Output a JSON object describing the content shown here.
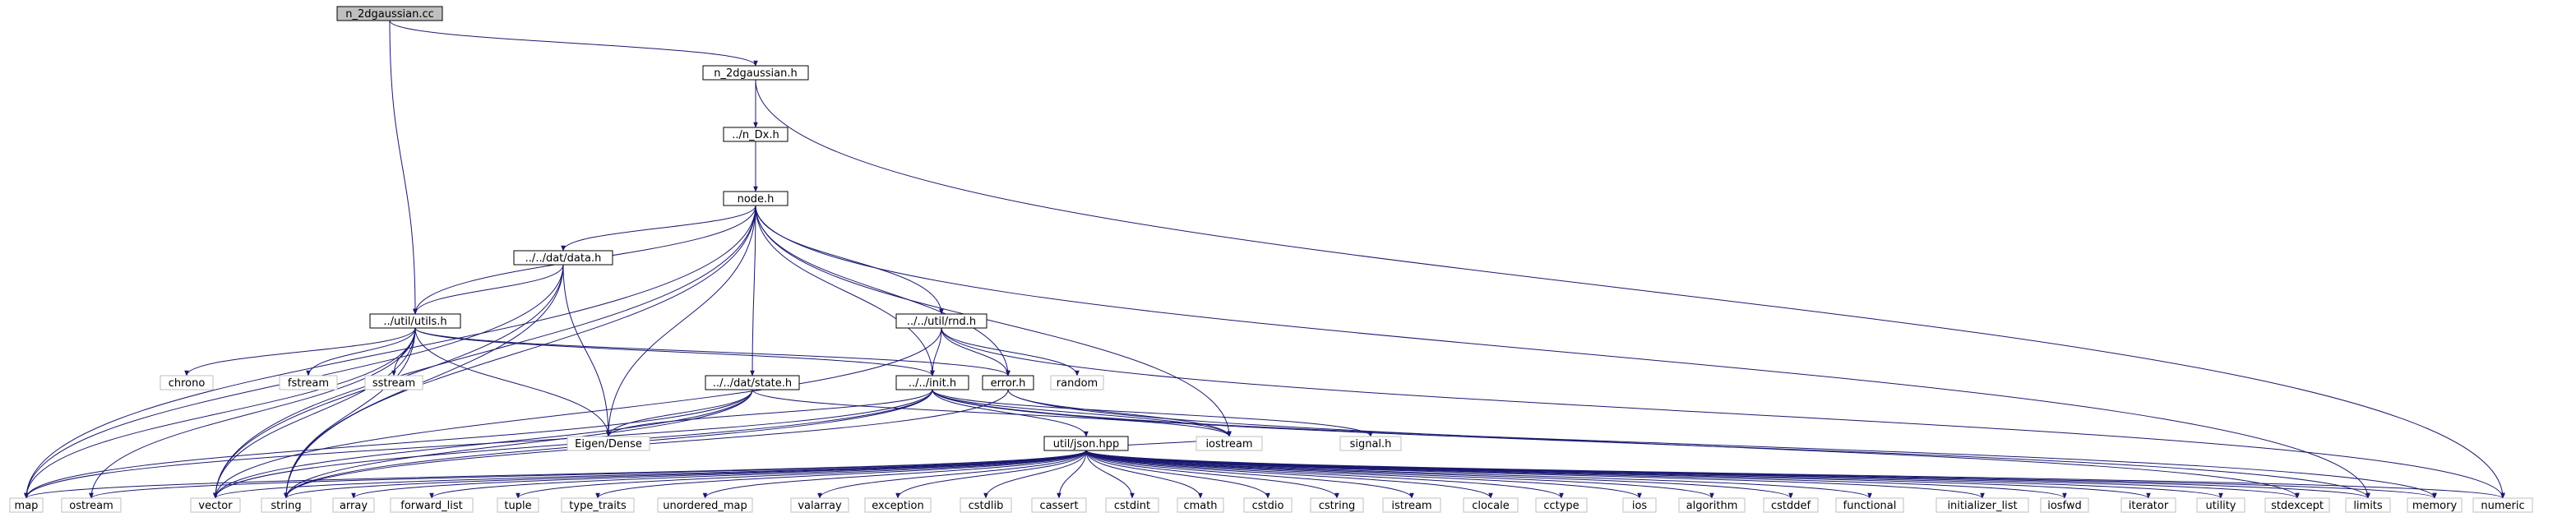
{
  "title": "n_2dgaussian.cc",
  "colors": {
    "edge": "#191970",
    "main_fill": "#bfbfbf",
    "node_fill": "#ffffff",
    "system_border": "#bfbfbf"
  },
  "nodes": [
    {
      "id": "cc",
      "label": "n_2dgaussian.cc",
      "kind": "main"
    },
    {
      "id": "h",
      "label": "n_2dgaussian.h",
      "kind": "file"
    },
    {
      "id": "ndx",
      "label": "../n_Dx.h",
      "kind": "file"
    },
    {
      "id": "node",
      "label": "node.h",
      "kind": "file"
    },
    {
      "id": "data",
      "label": "../../dat/data.h",
      "kind": "file"
    },
    {
      "id": "utils",
      "label": "../util/utils.h",
      "kind": "file"
    },
    {
      "id": "rnd",
      "label": "../../util/rnd.h",
      "kind": "file"
    },
    {
      "id": "state",
      "label": "../../dat/state.h",
      "kind": "file"
    },
    {
      "id": "init",
      "label": "../../init.h",
      "kind": "file"
    },
    {
      "id": "error",
      "label": "error.h",
      "kind": "file"
    },
    {
      "id": "json",
      "label": "util/json.hpp",
      "kind": "file"
    },
    {
      "id": "chrono",
      "label": "chrono",
      "kind": "sys"
    },
    {
      "id": "fstream",
      "label": "fstream",
      "kind": "sys"
    },
    {
      "id": "sstream",
      "label": "sstream",
      "kind": "sys"
    },
    {
      "id": "random",
      "label": "random",
      "kind": "sys"
    },
    {
      "id": "eigen",
      "label": "Eigen/Dense",
      "kind": "sys"
    },
    {
      "id": "iostream",
      "label": "iostream",
      "kind": "sys"
    },
    {
      "id": "signal",
      "label": "signal.h",
      "kind": "sys"
    },
    {
      "id": "map",
      "label": "map",
      "kind": "sys"
    },
    {
      "id": "ostream",
      "label": "ostream",
      "kind": "sys"
    },
    {
      "id": "vector",
      "label": "vector",
      "kind": "sys"
    },
    {
      "id": "string",
      "label": "string",
      "kind": "sys"
    },
    {
      "id": "array",
      "label": "array",
      "kind": "sys"
    },
    {
      "id": "forward_list",
      "label": "forward_list",
      "kind": "sys"
    },
    {
      "id": "tuple",
      "label": "tuple",
      "kind": "sys"
    },
    {
      "id": "type_traits",
      "label": "type_traits",
      "kind": "sys"
    },
    {
      "id": "unordered_map",
      "label": "unordered_map",
      "kind": "sys"
    },
    {
      "id": "valarray",
      "label": "valarray",
      "kind": "sys"
    },
    {
      "id": "exception",
      "label": "exception",
      "kind": "sys"
    },
    {
      "id": "cstdlib",
      "label": "cstdlib",
      "kind": "sys"
    },
    {
      "id": "cassert",
      "label": "cassert",
      "kind": "sys"
    },
    {
      "id": "cstdint",
      "label": "cstdint",
      "kind": "sys"
    },
    {
      "id": "cmath",
      "label": "cmath",
      "kind": "sys"
    },
    {
      "id": "cstdio",
      "label": "cstdio",
      "kind": "sys"
    },
    {
      "id": "cstring",
      "label": "cstring",
      "kind": "sys"
    },
    {
      "id": "istream",
      "label": "istream",
      "kind": "sys"
    },
    {
      "id": "clocale",
      "label": "clocale",
      "kind": "sys"
    },
    {
      "id": "cctype",
      "label": "cctype",
      "kind": "sys"
    },
    {
      "id": "ios",
      "label": "ios",
      "kind": "sys"
    },
    {
      "id": "algorithm",
      "label": "algorithm",
      "kind": "sys"
    },
    {
      "id": "cstddef",
      "label": "cstddef",
      "kind": "sys"
    },
    {
      "id": "functional",
      "label": "functional",
      "kind": "sys"
    },
    {
      "id": "initializer_list",
      "label": "initializer_list",
      "kind": "sys"
    },
    {
      "id": "iosfwd",
      "label": "iosfwd",
      "kind": "sys"
    },
    {
      "id": "iterator",
      "label": "iterator",
      "kind": "sys"
    },
    {
      "id": "utility",
      "label": "utility",
      "kind": "sys"
    },
    {
      "id": "stdexcept",
      "label": "stdexcept",
      "kind": "sys"
    },
    {
      "id": "limits",
      "label": "limits",
      "kind": "sys"
    },
    {
      "id": "memory",
      "label": "memory",
      "kind": "sys"
    },
    {
      "id": "numeric",
      "label": "numeric",
      "kind": "sys"
    }
  ],
  "edges": [
    [
      "cc",
      "h"
    ],
    [
      "cc",
      "utils"
    ],
    [
      "h",
      "ndx"
    ],
    [
      "h",
      "numeric"
    ],
    [
      "ndx",
      "node"
    ],
    [
      "node",
      "data"
    ],
    [
      "node",
      "utils"
    ],
    [
      "node",
      "rnd"
    ],
    [
      "node",
      "state"
    ],
    [
      "node",
      "init"
    ],
    [
      "node",
      "error"
    ],
    [
      "node",
      "eigen"
    ],
    [
      "node",
      "iostream"
    ],
    [
      "node",
      "map"
    ],
    [
      "node",
      "vector"
    ],
    [
      "node",
      "string"
    ],
    [
      "node",
      "limits"
    ],
    [
      "data",
      "utils"
    ],
    [
      "data",
      "eigen"
    ],
    [
      "data",
      "map"
    ],
    [
      "data",
      "vector"
    ],
    [
      "data",
      "string"
    ],
    [
      "utils",
      "init"
    ],
    [
      "utils",
      "error"
    ],
    [
      "utils",
      "chrono"
    ],
    [
      "utils",
      "fstream"
    ],
    [
      "utils",
      "sstream"
    ],
    [
      "utils",
      "eigen"
    ],
    [
      "utils",
      "map"
    ],
    [
      "utils",
      "ostream"
    ],
    [
      "utils",
      "vector"
    ],
    [
      "utils",
      "string"
    ],
    [
      "rnd",
      "init"
    ],
    [
      "rnd",
      "error"
    ],
    [
      "rnd",
      "random"
    ],
    [
      "rnd",
      "numeric"
    ],
    [
      "rnd",
      "vector"
    ],
    [
      "state",
      "eigen"
    ],
    [
      "state",
      "map"
    ],
    [
      "state",
      "vector"
    ],
    [
      "state",
      "string"
    ],
    [
      "state",
      "iostream"
    ],
    [
      "init",
      "json"
    ],
    [
      "init",
      "eigen"
    ],
    [
      "init",
      "iostream"
    ],
    [
      "init",
      "signal"
    ],
    [
      "init",
      "map"
    ],
    [
      "init",
      "string"
    ],
    [
      "init",
      "vector"
    ],
    [
      "init",
      "limits"
    ],
    [
      "init",
      "memory"
    ],
    [
      "error",
      "iostream"
    ],
    [
      "error",
      "string"
    ],
    [
      "error",
      "stdexcept"
    ],
    [
      "json",
      "map"
    ],
    [
      "json",
      "ostream"
    ],
    [
      "json",
      "vector"
    ],
    [
      "json",
      "string"
    ],
    [
      "json",
      "array"
    ],
    [
      "json",
      "forward_list"
    ],
    [
      "json",
      "tuple"
    ],
    [
      "json",
      "type_traits"
    ],
    [
      "json",
      "unordered_map"
    ],
    [
      "json",
      "valarray"
    ],
    [
      "json",
      "exception"
    ],
    [
      "json",
      "cstdlib"
    ],
    [
      "json",
      "cassert"
    ],
    [
      "json",
      "cstdint"
    ],
    [
      "json",
      "cmath"
    ],
    [
      "json",
      "cstdio"
    ],
    [
      "json",
      "cstring"
    ],
    [
      "json",
      "istream"
    ],
    [
      "json",
      "clocale"
    ],
    [
      "json",
      "cctype"
    ],
    [
      "json",
      "ios"
    ],
    [
      "json",
      "algorithm"
    ],
    [
      "json",
      "cstddef"
    ],
    [
      "json",
      "functional"
    ],
    [
      "json",
      "initializer_list"
    ],
    [
      "json",
      "iosfwd"
    ],
    [
      "json",
      "iterator"
    ],
    [
      "json",
      "utility"
    ],
    [
      "json",
      "stdexcept"
    ],
    [
      "json",
      "limits"
    ],
    [
      "json",
      "memory"
    ],
    [
      "json",
      "numeric"
    ],
    [
      "json",
      "iostream"
    ]
  ]
}
